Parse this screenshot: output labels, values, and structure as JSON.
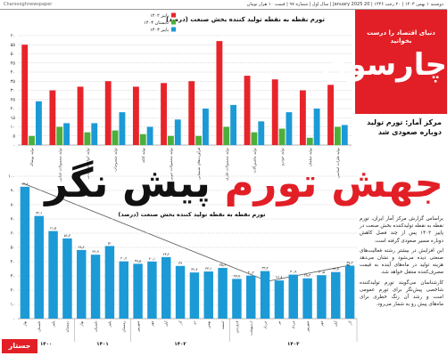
{
  "header": {
    "date_line": "دوشنبه ۱ بهمن ۱۴۰۳ | ۲۰ رجب ۱۴۴۶ | 20 January 2025 | سال اول | شماره ۹۷ | قیمت ۱۰ هزار تومان",
    "site": "Charsooghnewspaper"
  },
  "logo": {
    "tagline": "دنیای اقتصاد را درست بخوانید",
    "name": "چارسوق"
  },
  "kicker": "مرکز آمار: تورم تولید دوباره صعودی شد",
  "headline": {
    "part1": "جهش تورم",
    "part2": "پیش نگر"
  },
  "body": [
    "براساس گزارش مرکز آمار ایران، تورم نقطه به نقطه تولیدکننده بخش صنعت در پاییز ۱۴۰۳ پس از چند فصل کاهش دوباره مسیر صعودی گرفته است.",
    "این افزایش در بیشتر رشته فعالیت‌های صنعتی دیده می‌شود و نشان می‌دهد هزینه تولید در ماه‌های آینده به قیمت مصرف‌کننده منتقل خواهد شد.",
    "کارشناسان می‌گویند تورم تولیدکننده شاخصی پیش‌نگر برای تورم عمومی است و رشد آن زنگ خطری برای ماه‌های پیش رو به شمار می‌رود."
  ],
  "section_tag": "جستار",
  "chart_data": [
    {
      "type": "grouped_bar",
      "title": "تورم نقطه به نقطه تولید کننده بخش صنعت (درصد)",
      "categories": [
        "تولید پوشاک",
        "تولید محصولات غذایی",
        "تولید انواع آشامیدنی",
        "تولید منسوجات",
        "تولید کاغذ",
        "تولید محصولات چوبی",
        "فرآورده‌های شیمیایی",
        "تولید محصولات فلزی",
        "تولید ماشین‌آلات",
        "تولید خودرو",
        "تولید مبلمان",
        "تولید فلزات اساسی"
      ],
      "series": [
        {
          "name": "پاییز ۱۴۰۲",
          "color": "#e8242b",
          "values": [
            55,
            30,
            32,
            35,
            32,
            34,
            35,
            57,
            38,
            36,
            30,
            33
          ]
        },
        {
          "name": "تابستان ۱۴۰۳",
          "color": "#4caf3a",
          "values": [
            5,
            10,
            7,
            8,
            6,
            5,
            5,
            10,
            7,
            9,
            4,
            10
          ]
        },
        {
          "name": "پاییز ۱۴۰۳",
          "color": "#1c9ad6",
          "values": [
            24,
            12,
            12,
            18,
            10,
            14,
            20,
            22,
            13,
            18,
            20,
            11
          ]
        }
      ],
      "ylim": [
        0,
        60
      ],
      "yticks": [
        {
          "value": 0,
          "label": "۰"
        },
        {
          "value": 5,
          "label": "۵"
        },
        {
          "value": 10,
          "label": "۱۰"
        },
        {
          "value": 15,
          "label": "۱۵"
        },
        {
          "value": 20,
          "label": "۲۰"
        },
        {
          "value": 25,
          "label": "۲۵"
        },
        {
          "value": 30,
          "label": "۳۰"
        },
        {
          "value": 35,
          "label": "۳۵"
        },
        {
          "value": 40,
          "label": "۴۰"
        },
        {
          "value": 45,
          "label": "۴۵"
        },
        {
          "value": 50,
          "label": "۵۰"
        },
        {
          "value": 55,
          "label": "۵۵"
        },
        {
          "value": 60,
          "label": "۶۰"
        }
      ],
      "grid": true
    },
    {
      "type": "bar",
      "title": "تورم نقطه به نقطه تولید کننده بخش صنعت (درصد)",
      "color": "#1c9ad6",
      "groups": [
        {
          "name": "۱۴۰۰",
          "categories": [
            "بهار",
            "تابستان",
            "پاییز",
            "زمستان"
          ],
          "values": [
            92.6,
            72.1,
            61.5,
            56.3
          ],
          "value_labels": [
            "۹۲٫۶",
            "۷۲٫۱",
            "۶۱٫۵",
            "۵۶٫۳"
          ]
        },
        {
          "name": "۱۴۰۱",
          "categories": [
            "بهار",
            "تابستان",
            "پاییز",
            "زمستان"
          ],
          "values": [
            48.2,
            44.9,
            51,
            40.2
          ],
          "value_labels": [
            "۴۸٫۲",
            "۴۴٫۹",
            "۵۱",
            "۴۰٫۲"
          ]
        },
        {
          "name": "۱۴۰۲",
          "categories": [
            "شهریور",
            "مهر",
            "آبان",
            "آذر",
            "دی",
            "بهمن",
            "اسفند"
          ],
          "values": [
            38.5,
            40.1,
            43.2,
            37,
            32.4,
            33.1,
            35.6
          ],
          "value_labels": [
            "۳۸٫۵",
            "۴۰٫۱",
            "۴۳٫۲",
            "۳۷",
            "۳۲٫۴",
            "۳۳٫۱",
            "۳۵٫۶"
          ]
        },
        {
          "name": "۱۴۰۳",
          "categories": [
            "فروردین",
            "اردیبهشت",
            "خرداد",
            "تیر",
            "مرداد",
            "شهریور",
            "مهر",
            "آبان",
            "آذر"
          ],
          "values": [
            27.9,
            30.2,
            33.4,
            26.8,
            30.9,
            28.3,
            30.5,
            32.7,
            37.2
          ],
          "value_labels": [
            "۲۷٫۹",
            "۳۰٫۲",
            "۳۳٫۴",
            "۲۶٫۸",
            "۳۰٫۹",
            "۲۸٫۳",
            "۳۰٫۵",
            "۳۲٫۷",
            "۳۷٫۲"
          ]
        }
      ],
      "ylim": [
        0,
        100
      ],
      "yticks": [
        {
          "value": 0,
          "label": "۰"
        },
        {
          "value": 10,
          "label": "۱۰"
        },
        {
          "value": 20,
          "label": "۲۰"
        },
        {
          "value": 30,
          "label": "۳۰"
        },
        {
          "value": 40,
          "label": "۴۰"
        },
        {
          "value": 50,
          "label": "۵۰"
        },
        {
          "value": 60,
          "label": "۶۰"
        },
        {
          "value": 70,
          "label": "۷۰"
        },
        {
          "value": 80,
          "label": "۸۰"
        },
        {
          "value": 90,
          "label": "۹۰"
        },
        {
          "value": 100,
          "label": "۱۰۰"
        }
      ],
      "grid": true
    }
  ]
}
